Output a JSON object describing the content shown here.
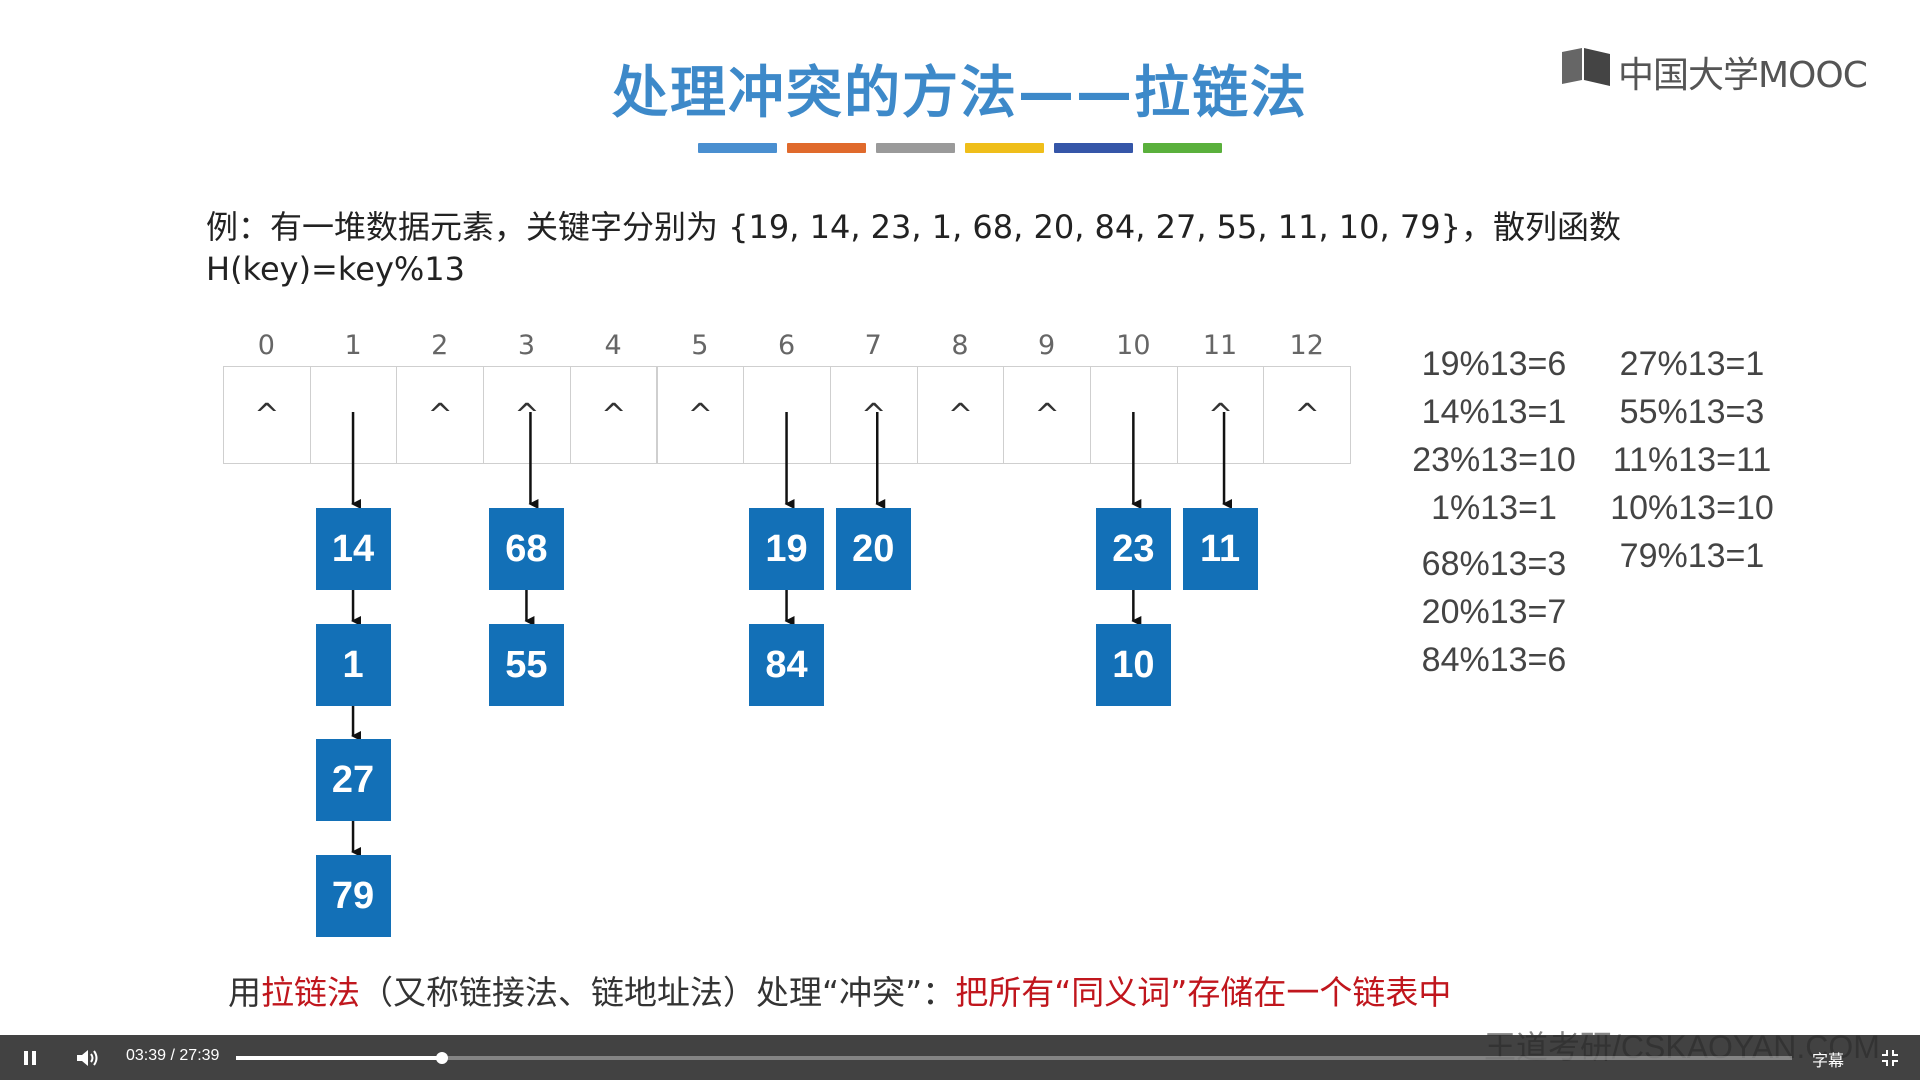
{
  "slide": {
    "title": "处理冲突的方法——拉链法",
    "title_bar_colors": [
      "#4a8fd0",
      "#e06a2c",
      "#9a9a9a",
      "#efbe1a",
      "#3556a8",
      "#5ab03c"
    ],
    "logo_text": "中国大学MOOC",
    "description_line1": "例：有一堆数据元素，关键字分别为 {19, 14, 23, 1, 68, 20, 84, 27, 55, 11, 10, 79}，散列函数",
    "description_line2": "H(key)=key%13",
    "empty_marker": "^",
    "slots": [
      {
        "index": "0",
        "chain": []
      },
      {
        "index": "1",
        "chain": [
          "14",
          "1",
          "27",
          "79"
        ]
      },
      {
        "index": "2",
        "chain": []
      },
      {
        "index": "3",
        "chain": [
          "68",
          "55"
        ]
      },
      {
        "index": "4",
        "chain": []
      },
      {
        "index": "5",
        "chain": []
      },
      {
        "index": "6",
        "chain": [
          "19",
          "84"
        ]
      },
      {
        "index": "7",
        "chain": [
          "20"
        ]
      },
      {
        "index": "8",
        "chain": []
      },
      {
        "index": "9",
        "chain": []
      },
      {
        "index": "10",
        "chain": [
          "23",
          "10"
        ]
      },
      {
        "index": "11",
        "chain": [
          "11"
        ]
      },
      {
        "index": "12",
        "chain": []
      }
    ],
    "calculations_left": [
      "19%13=6",
      "14%13=1",
      "23%13=10",
      "1%13=1",
      "68%13=3",
      "20%13=7",
      "84%13=6"
    ],
    "calculations_right": [
      "27%13=1",
      "55%13=3",
      "11%13=11",
      "10%13=10",
      "79%13=1"
    ],
    "bottom_prefix": "用",
    "bottom_highlight1": "拉链法",
    "bottom_middle": "（又称链接法、链地址法）处理“冲突”：",
    "bottom_highlight2": "把所有“同义词”存储在一个链表中",
    "watermark": "王道考研/CSKAOYAN.COM",
    "node_color": "#1370b7",
    "title_color": "#3d89c9",
    "highlight_color": "#c0161d"
  },
  "player": {
    "state": "playing",
    "current_time": "03:39",
    "separator": "/",
    "duration": "27:39",
    "progress": 0.1322,
    "subtitles_label": "字幕",
    "play_pause_icon": "pause-icon",
    "volume_icon": "volume-icon",
    "fullscreen_icon": "exit-fullscreen-icon"
  }
}
